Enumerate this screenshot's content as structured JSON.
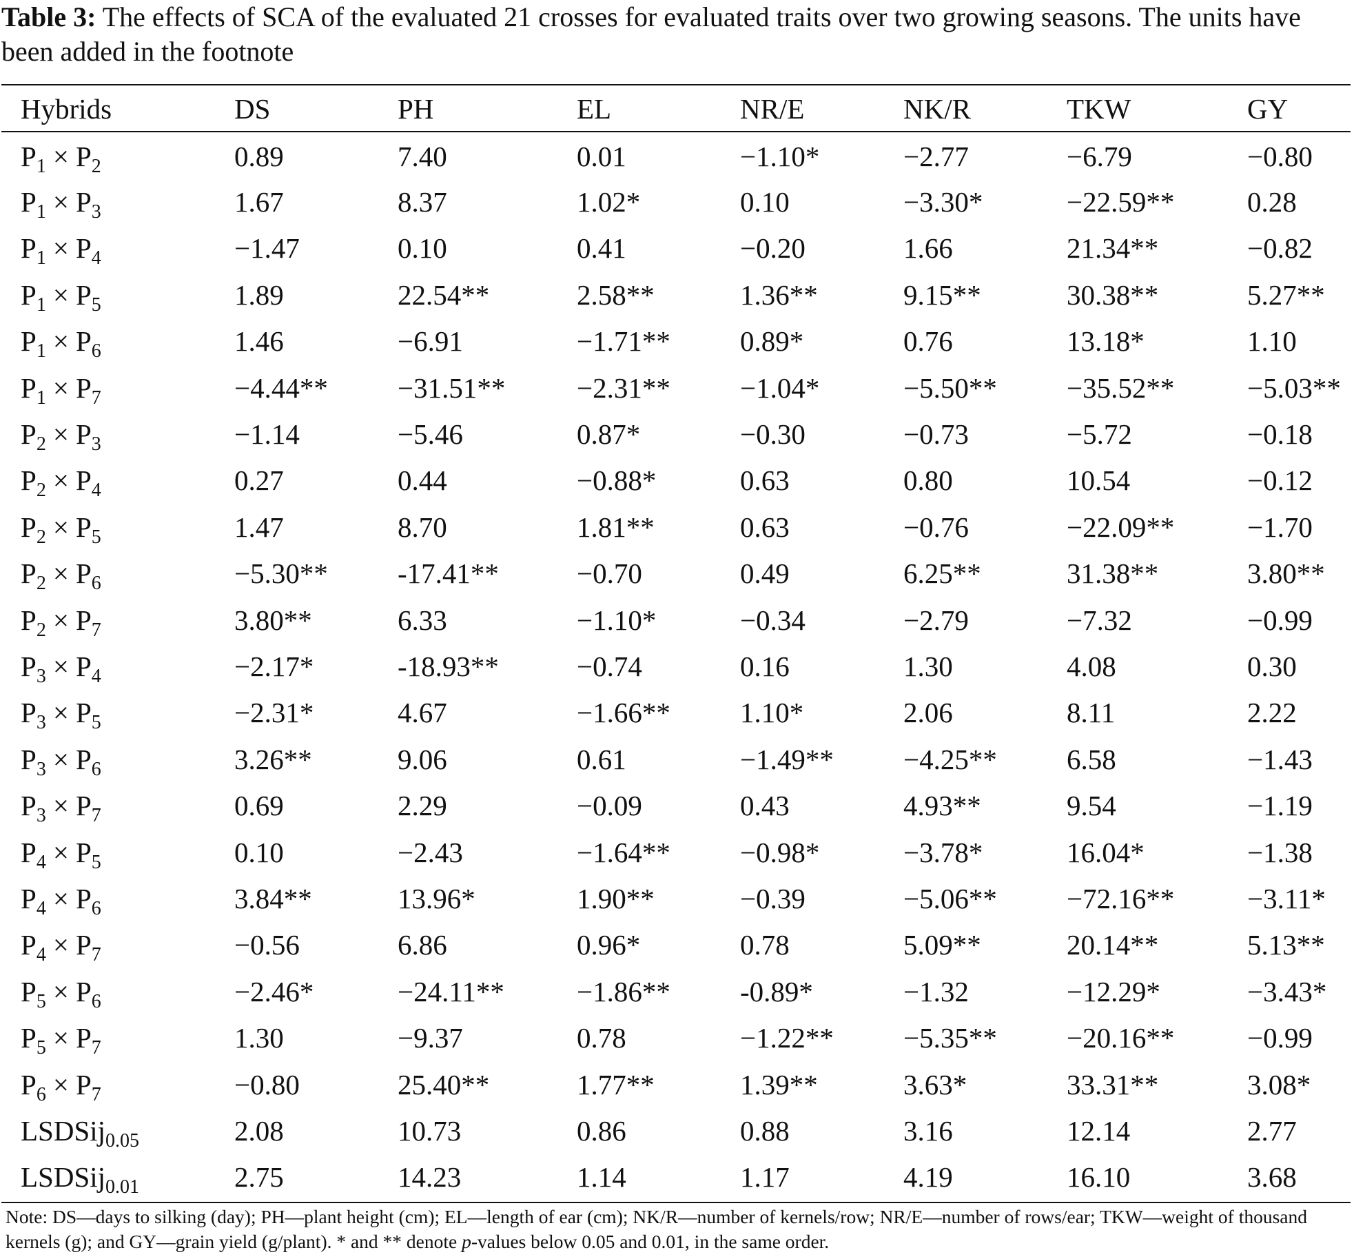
{
  "caption": {
    "label": "Table 3:",
    "text": "The effects of SCA of the evaluated 21 crosses for evaluated traits over two growing seasons. The units have been added in the footnote"
  },
  "table": {
    "headers": [
      "Hybrids",
      "DS",
      "PH",
      "EL",
      "NR/E",
      "NK/R",
      "TKW",
      "GY"
    ],
    "rows": [
      {
        "a": "P",
        "a_sub": "1",
        "b": "P",
        "b_sub": "2",
        "values": [
          "0.89",
          "7.40",
          "0.01",
          "−1.10*",
          "−2.77",
          "−6.79",
          "−0.80"
        ]
      },
      {
        "a": "P",
        "a_sub": "1",
        "b": "P",
        "b_sub": "3",
        "values": [
          "1.67",
          "8.37",
          "1.02*",
          "0.10",
          "−3.30*",
          "−22.59**",
          "0.28"
        ]
      },
      {
        "a": "P",
        "a_sub": "1",
        "b": "P",
        "b_sub": "4",
        "values": [
          "−1.47",
          "0.10",
          "0.41",
          "−0.20",
          "1.66",
          "21.34**",
          "−0.82"
        ]
      },
      {
        "a": "P",
        "a_sub": "1",
        "b": "P",
        "b_sub": "5",
        "values": [
          "1.89",
          "22.54**",
          "2.58**",
          "1.36**",
          "9.15**",
          "30.38**",
          "5.27**"
        ]
      },
      {
        "a": "P",
        "a_sub": "1",
        "b": "P",
        "b_sub": "6",
        "values": [
          "1.46",
          "−6.91",
          "−1.71**",
          "0.89*",
          "0.76",
          "13.18*",
          "1.10"
        ]
      },
      {
        "a": "P",
        "a_sub": "1",
        "b": "P",
        "b_sub": "7",
        "values": [
          "−4.44**",
          "−31.51**",
          "−2.31**",
          "−1.04*",
          "−5.50**",
          "−35.52**",
          "−5.03**"
        ]
      },
      {
        "a": "P",
        "a_sub": "2",
        "b": "P",
        "b_sub": "3",
        "values": [
          "−1.14",
          "−5.46",
          "0.87*",
          "−0.30",
          "−0.73",
          "−5.72",
          "−0.18"
        ]
      },
      {
        "a": "P",
        "a_sub": "2",
        "b": "P",
        "b_sub": "4",
        "values": [
          "0.27",
          "0.44",
          "−0.88*",
          "0.63",
          "0.80",
          "10.54",
          "−0.12"
        ]
      },
      {
        "a": "P",
        "a_sub": "2",
        "b": "P",
        "b_sub": "5",
        "values": [
          "1.47",
          "8.70",
          "1.81**",
          "0.63",
          "−0.76",
          "−22.09**",
          "−1.70"
        ]
      },
      {
        "a": "P",
        "a_sub": "2",
        "b": "P",
        "b_sub": "6",
        "values": [
          "−5.30**",
          "-17.41**",
          "−0.70",
          "0.49",
          "6.25**",
          "31.38**",
          "3.80**"
        ]
      },
      {
        "a": "P",
        "a_sub": "2",
        "b": "P",
        "b_sub": "7",
        "values": [
          "3.80**",
          "6.33",
          "−1.10*",
          "−0.34",
          "−2.79",
          "−7.32",
          "−0.99"
        ]
      },
      {
        "a": "P",
        "a_sub": "3",
        "b": "P",
        "b_sub": "4",
        "values": [
          "−2.17*",
          "-18.93**",
          "−0.74",
          "0.16",
          "1.30",
          "4.08",
          "0.30"
        ]
      },
      {
        "a": "P",
        "a_sub": "3",
        "b": "P",
        "b_sub": "5",
        "values": [
          "−2.31*",
          "4.67",
          "−1.66**",
          "1.10*",
          "2.06",
          "8.11",
          "2.22"
        ]
      },
      {
        "a": "P",
        "a_sub": "3",
        "b": "P",
        "b_sub": "6",
        "values": [
          "3.26**",
          "9.06",
          "0.61",
          "−1.49**",
          "−4.25**",
          "6.58",
          "−1.43"
        ]
      },
      {
        "a": "P",
        "a_sub": "3",
        "b": "P",
        "b_sub": "7",
        "values": [
          "0.69",
          "2.29",
          "−0.09",
          "0.43",
          "4.93**",
          "9.54",
          "−1.19"
        ]
      },
      {
        "a": "P",
        "a_sub": "4",
        "b": "P",
        "b_sub": "5",
        "values": [
          "0.10",
          "−2.43",
          "−1.64**",
          "−0.98*",
          "−3.78*",
          "16.04*",
          "−1.38"
        ]
      },
      {
        "a": "P",
        "a_sub": "4",
        "b": "P",
        "b_sub": "6",
        "values": [
          "3.84**",
          "13.96*",
          "1.90**",
          "−0.39",
          "−5.06**",
          "−72.16**",
          "−3.11*"
        ]
      },
      {
        "a": "P",
        "a_sub": "4",
        "b": "P",
        "b_sub": "7",
        "values": [
          "−0.56",
          "6.86",
          "0.96*",
          "0.78",
          "5.09**",
          "20.14**",
          "5.13**"
        ]
      },
      {
        "a": "P",
        "a_sub": "5",
        "b": "P",
        "b_sub": "6",
        "values": [
          "−2.46*",
          "−24.11**",
          "−1.86**",
          "-0.89*",
          "−1.32",
          "−12.29*",
          "−3.43*"
        ]
      },
      {
        "a": "P",
        "a_sub": "5",
        "b": "P",
        "b_sub": "7",
        "values": [
          "1.30",
          "−9.37",
          "0.78",
          "−1.22**",
          "−5.35**",
          "−20.16**",
          "−0.99"
        ]
      },
      {
        "a": "P",
        "a_sub": "6",
        "b": "P",
        "b_sub": "7",
        "values": [
          "−0.80",
          "25.40**",
          "1.77**",
          "1.39**",
          "3.63*",
          "33.31**",
          "3.08*"
        ]
      }
    ],
    "operator": "×",
    "lsd_rows": [
      {
        "label": "LSDSij",
        "sub": "0.05",
        "values": [
          "2.08",
          "10.73",
          "0.86",
          "0.88",
          "3.16",
          "12.14",
          "2.77"
        ]
      },
      {
        "label": "LSDSij",
        "sub": "0.01",
        "values": [
          "2.75",
          "14.23",
          "1.14",
          "1.17",
          "4.19",
          "16.10",
          "3.68"
        ]
      }
    ]
  },
  "note": {
    "part1": "Note: DS—days to silking (day); PH—plant height (cm); EL—length of ear (cm); NK/R—number of kernels/row; NR/E—number of rows/ear; TKW—weight of thousand kernels (g); and GY—grain yield (g/plant). * and ** denote ",
    "italic": "p",
    "part2": "-values below 0.05 and 0.01, in the same order."
  }
}
